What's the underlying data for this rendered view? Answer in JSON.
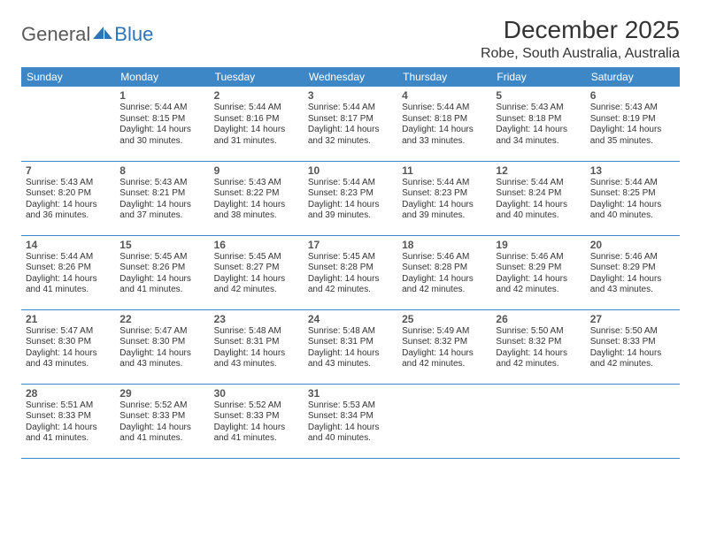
{
  "logo": {
    "general": "General",
    "blue": "Blue",
    "shape_color": "#2d74b8"
  },
  "title": "December 2025",
  "location": "Robe, South Australia, Australia",
  "colors": {
    "header_bg": "#3d87c7",
    "header_text": "#ffffff",
    "border": "#3d87c7",
    "text": "#333333",
    "logo_gray": "#5a5a5a",
    "logo_blue": "#2d74b8"
  },
  "typography": {
    "title_fontsize": 28,
    "location_fontsize": 16,
    "dayheader_fontsize": 12,
    "daynum_fontsize": 12,
    "body_fontsize": 10
  },
  "day_headers": [
    "Sunday",
    "Monday",
    "Tuesday",
    "Wednesday",
    "Thursday",
    "Friday",
    "Saturday"
  ],
  "first_weekday_offset": 1,
  "days": [
    {
      "n": 1,
      "sunrise": "5:44 AM",
      "sunset": "8:15 PM",
      "daylight": "14 hours and 30 minutes."
    },
    {
      "n": 2,
      "sunrise": "5:44 AM",
      "sunset": "8:16 PM",
      "daylight": "14 hours and 31 minutes."
    },
    {
      "n": 3,
      "sunrise": "5:44 AM",
      "sunset": "8:17 PM",
      "daylight": "14 hours and 32 minutes."
    },
    {
      "n": 4,
      "sunrise": "5:44 AM",
      "sunset": "8:18 PM",
      "daylight": "14 hours and 33 minutes."
    },
    {
      "n": 5,
      "sunrise": "5:43 AM",
      "sunset": "8:18 PM",
      "daylight": "14 hours and 34 minutes."
    },
    {
      "n": 6,
      "sunrise": "5:43 AM",
      "sunset": "8:19 PM",
      "daylight": "14 hours and 35 minutes."
    },
    {
      "n": 7,
      "sunrise": "5:43 AM",
      "sunset": "8:20 PM",
      "daylight": "14 hours and 36 minutes."
    },
    {
      "n": 8,
      "sunrise": "5:43 AM",
      "sunset": "8:21 PM",
      "daylight": "14 hours and 37 minutes."
    },
    {
      "n": 9,
      "sunrise": "5:43 AM",
      "sunset": "8:22 PM",
      "daylight": "14 hours and 38 minutes."
    },
    {
      "n": 10,
      "sunrise": "5:44 AM",
      "sunset": "8:23 PM",
      "daylight": "14 hours and 39 minutes."
    },
    {
      "n": 11,
      "sunrise": "5:44 AM",
      "sunset": "8:23 PM",
      "daylight": "14 hours and 39 minutes."
    },
    {
      "n": 12,
      "sunrise": "5:44 AM",
      "sunset": "8:24 PM",
      "daylight": "14 hours and 40 minutes."
    },
    {
      "n": 13,
      "sunrise": "5:44 AM",
      "sunset": "8:25 PM",
      "daylight": "14 hours and 40 minutes."
    },
    {
      "n": 14,
      "sunrise": "5:44 AM",
      "sunset": "8:26 PM",
      "daylight": "14 hours and 41 minutes."
    },
    {
      "n": 15,
      "sunrise": "5:45 AM",
      "sunset": "8:26 PM",
      "daylight": "14 hours and 41 minutes."
    },
    {
      "n": 16,
      "sunrise": "5:45 AM",
      "sunset": "8:27 PM",
      "daylight": "14 hours and 42 minutes."
    },
    {
      "n": 17,
      "sunrise": "5:45 AM",
      "sunset": "8:28 PM",
      "daylight": "14 hours and 42 minutes."
    },
    {
      "n": 18,
      "sunrise": "5:46 AM",
      "sunset": "8:28 PM",
      "daylight": "14 hours and 42 minutes."
    },
    {
      "n": 19,
      "sunrise": "5:46 AM",
      "sunset": "8:29 PM",
      "daylight": "14 hours and 42 minutes."
    },
    {
      "n": 20,
      "sunrise": "5:46 AM",
      "sunset": "8:29 PM",
      "daylight": "14 hours and 43 minutes."
    },
    {
      "n": 21,
      "sunrise": "5:47 AM",
      "sunset": "8:30 PM",
      "daylight": "14 hours and 43 minutes."
    },
    {
      "n": 22,
      "sunrise": "5:47 AM",
      "sunset": "8:30 PM",
      "daylight": "14 hours and 43 minutes."
    },
    {
      "n": 23,
      "sunrise": "5:48 AM",
      "sunset": "8:31 PM",
      "daylight": "14 hours and 43 minutes."
    },
    {
      "n": 24,
      "sunrise": "5:48 AM",
      "sunset": "8:31 PM",
      "daylight": "14 hours and 43 minutes."
    },
    {
      "n": 25,
      "sunrise": "5:49 AM",
      "sunset": "8:32 PM",
      "daylight": "14 hours and 42 minutes."
    },
    {
      "n": 26,
      "sunrise": "5:50 AM",
      "sunset": "8:32 PM",
      "daylight": "14 hours and 42 minutes."
    },
    {
      "n": 27,
      "sunrise": "5:50 AM",
      "sunset": "8:33 PM",
      "daylight": "14 hours and 42 minutes."
    },
    {
      "n": 28,
      "sunrise": "5:51 AM",
      "sunset": "8:33 PM",
      "daylight": "14 hours and 41 minutes."
    },
    {
      "n": 29,
      "sunrise": "5:52 AM",
      "sunset": "8:33 PM",
      "daylight": "14 hours and 41 minutes."
    },
    {
      "n": 30,
      "sunrise": "5:52 AM",
      "sunset": "8:33 PM",
      "daylight": "14 hours and 41 minutes."
    },
    {
      "n": 31,
      "sunrise": "5:53 AM",
      "sunset": "8:34 PM",
      "daylight": "14 hours and 40 minutes."
    }
  ],
  "labels": {
    "sunrise_prefix": "Sunrise: ",
    "sunset_prefix": "Sunset: ",
    "daylight_prefix": "Daylight: "
  }
}
